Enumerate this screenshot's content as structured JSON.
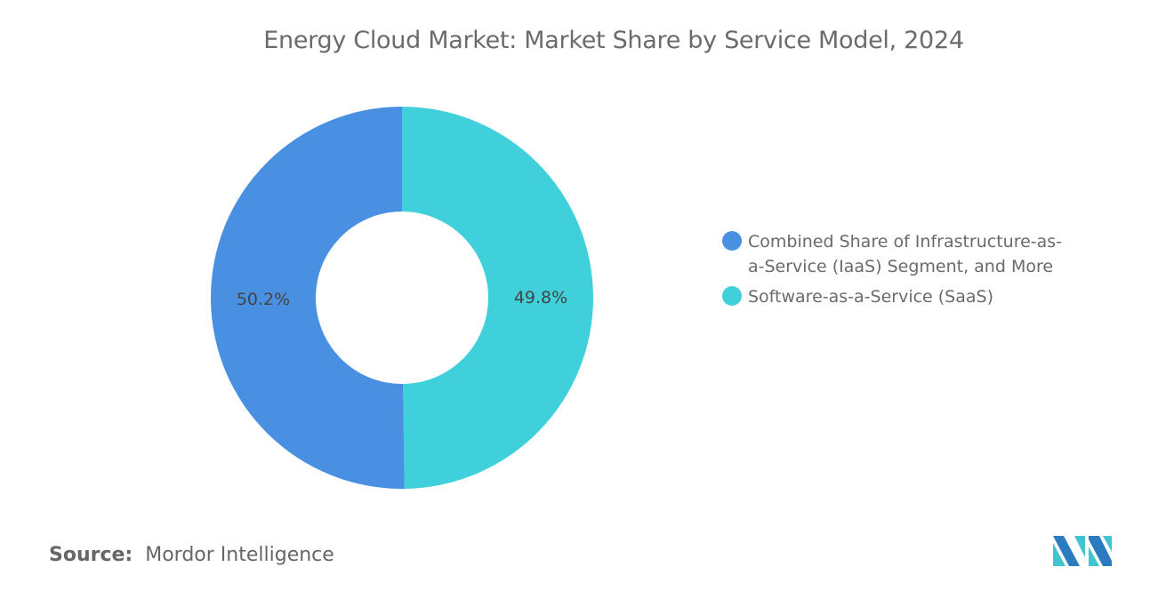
{
  "chart_data": {
    "type": "pie",
    "donut": true,
    "title": "Energy Cloud Market: Market Share by Service Model, 2024",
    "legend_position": "right",
    "slices": [
      {
        "label": "Software-as-a-Service (SaaS)",
        "value": 49.8,
        "display": "49.8%",
        "color": "#40d0db"
      },
      {
        "label": "Combined Share of Infrastructure-as-a-Service (IaaS) Segment, and More",
        "value": 50.2,
        "display": "50.2%",
        "color": "#4a90e2"
      }
    ]
  },
  "legend": {
    "items": [
      {
        "label": "Combined Share of Infrastructure-as-a-Service (IaaS) Segment, and More",
        "color": "#4a90e2"
      },
      {
        "label": "Software-as-a-Service (SaaS)",
        "color": "#40d0db"
      }
    ]
  },
  "source": {
    "prefix": "Source:",
    "text": "Mordor Intelligence"
  },
  "logo": {
    "text": "Mordor Intelligence",
    "colors": [
      "#2a7bc0",
      "#40c4cf"
    ]
  }
}
